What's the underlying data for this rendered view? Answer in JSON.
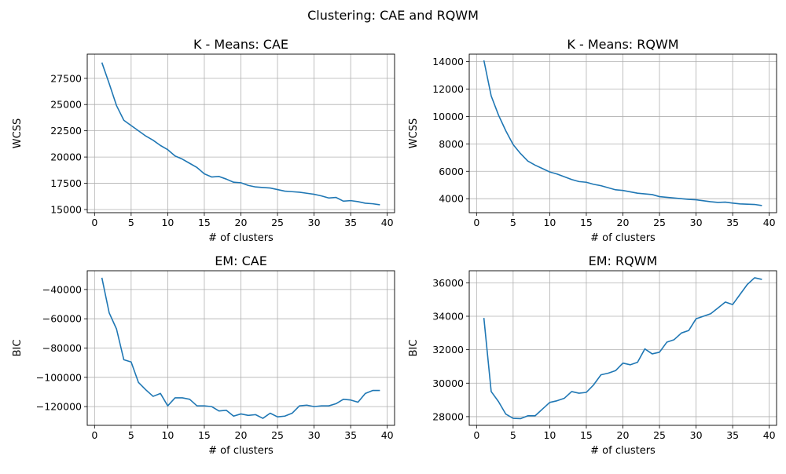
{
  "figure": {
    "suptitle": "Clustering: CAE and RQWM"
  },
  "style": {
    "line_color": "#1f77b4",
    "grid_color": "#b0b0b0"
  },
  "chart_data": [
    {
      "type": "line",
      "title": "K - Means: CAE",
      "xlabel": "# of clusters",
      "ylabel": "WCSS",
      "grid": true,
      "xlim": [
        -1,
        41
      ],
      "ylim": [
        14700,
        29800
      ],
      "xticks": [
        0,
        5,
        10,
        15,
        20,
        25,
        30,
        35,
        40
      ],
      "yticks": [
        15000,
        17500,
        20000,
        22500,
        25000,
        27500
      ],
      "x": [
        1,
        2,
        3,
        4,
        5,
        6,
        7,
        8,
        9,
        10,
        11,
        12,
        13,
        14,
        15,
        16,
        17,
        18,
        19,
        20,
        21,
        22,
        23,
        24,
        25,
        26,
        27,
        28,
        29,
        30,
        31,
        32,
        33,
        34,
        35,
        36,
        37,
        38,
        39
      ],
      "y": [
        29000,
        27000,
        24900,
        23500,
        23000,
        22500,
        22000,
        21600,
        21100,
        20700,
        20100,
        19800,
        19400,
        19000,
        18400,
        18100,
        18150,
        17900,
        17600,
        17550,
        17300,
        17150,
        17100,
        17050,
        16900,
        16750,
        16700,
        16650,
        16550,
        16450,
        16300,
        16100,
        16150,
        15800,
        15850,
        15750,
        15600,
        15550,
        15450
      ]
    },
    {
      "type": "line",
      "title": "K - Means: RQWM",
      "xlabel": "# of clusters",
      "ylabel": "WCSS",
      "grid": true,
      "xlim": [
        -1,
        41
      ],
      "ylim": [
        2980,
        14550
      ],
      "xticks": [
        0,
        5,
        10,
        15,
        20,
        25,
        30,
        35,
        40
      ],
      "yticks": [
        4000,
        6000,
        8000,
        10000,
        12000,
        14000
      ],
      "x": [
        1,
        2,
        3,
        4,
        5,
        6,
        7,
        8,
        9,
        10,
        11,
        12,
        13,
        14,
        15,
        16,
        17,
        18,
        19,
        20,
        21,
        22,
        23,
        24,
        25,
        26,
        27,
        28,
        29,
        30,
        31,
        32,
        33,
        34,
        35,
        36,
        37,
        38,
        39
      ],
      "y": [
        14100,
        11500,
        10100,
        8950,
        7950,
        7300,
        6750,
        6450,
        6200,
        5950,
        5800,
        5600,
        5400,
        5250,
        5200,
        5050,
        4950,
        4800,
        4650,
        4600,
        4500,
        4400,
        4350,
        4300,
        4150,
        4100,
        4050,
        4000,
        3950,
        3920,
        3850,
        3780,
        3730,
        3750,
        3680,
        3620,
        3600,
        3580,
        3500
      ]
    },
    {
      "type": "line",
      "title": "EM: CAE",
      "xlabel": "# of clusters",
      "ylabel": "BIC",
      "grid": true,
      "xlim": [
        -1,
        41
      ],
      "ylim": [
        -132800,
        -27200
      ],
      "xticks": [
        0,
        5,
        10,
        15,
        20,
        25,
        30,
        35,
        40
      ],
      "yticks": [
        -120000,
        -100000,
        -80000,
        -60000,
        -40000
      ],
      "x": [
        1,
        2,
        3,
        4,
        5,
        6,
        7,
        8,
        9,
        10,
        11,
        12,
        13,
        14,
        15,
        16,
        17,
        18,
        19,
        20,
        21,
        22,
        23,
        24,
        25,
        26,
        27,
        28,
        29,
        30,
        31,
        32,
        33,
        34,
        35,
        36,
        37,
        38,
        39
      ],
      "y": [
        -32000,
        -56000,
        -67000,
        -88000,
        -89500,
        -103500,
        -108500,
        -113000,
        -111000,
        -119500,
        -114000,
        -114000,
        -115000,
        -119500,
        -119500,
        -120000,
        -123000,
        -122500,
        -126500,
        -125000,
        -126000,
        -125500,
        -128000,
        -124500,
        -127000,
        -126500,
        -124500,
        -119500,
        -119000,
        -120000,
        -119500,
        -119500,
        -118000,
        -115000,
        -115500,
        -117000,
        -111000,
        -109000,
        -109000
      ]
    },
    {
      "type": "line",
      "title": "EM: RQWM",
      "xlabel": "# of clusters",
      "ylabel": "BIC",
      "grid": true,
      "xlim": [
        -1,
        41
      ],
      "ylim": [
        27480,
        36720
      ],
      "xticks": [
        0,
        5,
        10,
        15,
        20,
        25,
        30,
        35,
        40
      ],
      "yticks": [
        28000,
        30000,
        32000,
        34000,
        36000
      ],
      "x": [
        1,
        2,
        3,
        4,
        5,
        6,
        7,
        8,
        9,
        10,
        11,
        12,
        13,
        14,
        15,
        16,
        17,
        18,
        19,
        20,
        21,
        22,
        23,
        24,
        25,
        26,
        27,
        28,
        29,
        30,
        31,
        32,
        33,
        34,
        35,
        36,
        37,
        38,
        39
      ],
      "y": [
        33900,
        29500,
        28900,
        28150,
        27900,
        27880,
        28050,
        28050,
        28450,
        28850,
        28950,
        29100,
        29500,
        29400,
        29450,
        29900,
        30500,
        30600,
        30750,
        31200,
        31100,
        31250,
        32050,
        31750,
        31850,
        32450,
        32600,
        33000,
        33150,
        33850,
        34000,
        34150,
        34500,
        34850,
        34700,
        35300,
        35900,
        36300,
        36200
      ]
    }
  ]
}
